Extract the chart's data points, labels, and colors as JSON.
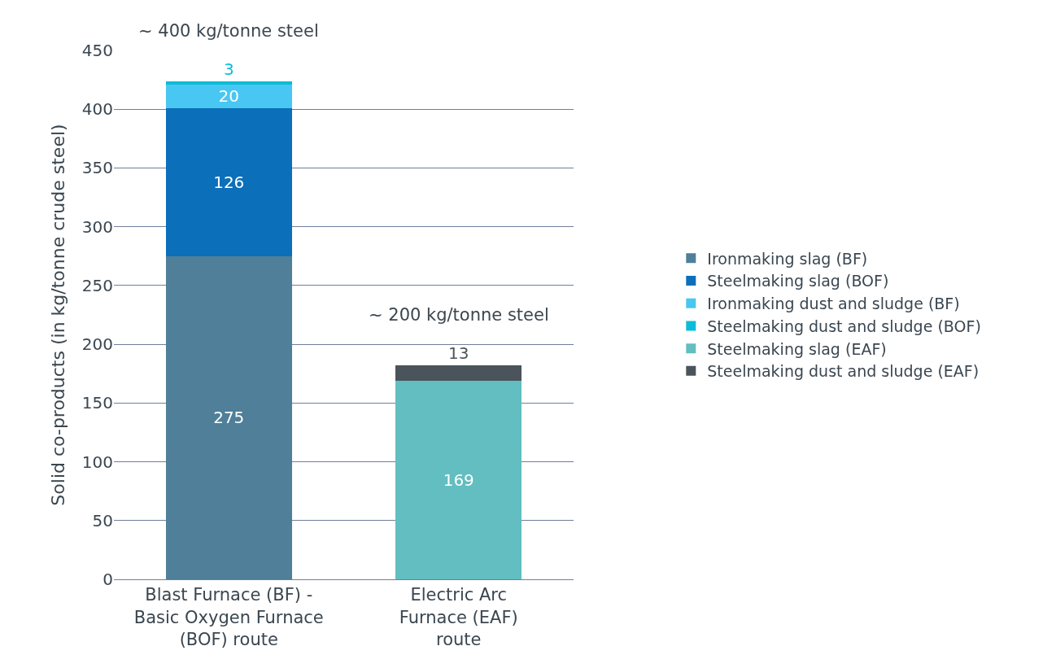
{
  "chart_data": {
    "type": "bar",
    "stacked": true,
    "ylabel": "Solid co-products (in kg/tonne crude steel)",
    "categories": [
      "Blast Furnace (BF) -\nBasic Oxygen Furnace\n(BOF) route",
      "Electric Arc\nFurnace (EAF)\nroute"
    ],
    "series": [
      {
        "name": "Ironmaking slag (BF)",
        "color": "#4f7f99",
        "values": [
          275,
          null
        ]
      },
      {
        "name": "Steelmaking slag (BOF)",
        "color": "#0b6fba",
        "values": [
          126,
          null
        ]
      },
      {
        "name": "Ironmaking dust and sludge (BF)",
        "color": "#48c7f2",
        "values": [
          20,
          null
        ]
      },
      {
        "name": "Steelmaking dust and sludge (BOF)",
        "color": "#0cbcd6",
        "values": [
          3,
          null
        ]
      },
      {
        "name": "Steelmaking slag (EAF)",
        "color": "#62bec0",
        "values": [
          null,
          169
        ]
      },
      {
        "name": "Steelmaking dust and sludge (EAF)",
        "color": "#4a545a",
        "values": [
          null,
          13
        ]
      }
    ],
    "ylim": [
      0,
      450
    ],
    "yticks": [
      0,
      50,
      100,
      150,
      200,
      250,
      300,
      350,
      400,
      450
    ],
    "grid": "y",
    "legend": "right",
    "data_labels": true,
    "annotations": [
      "~ 400 kg/tonne steel",
      "~ 200 kg/tonne steel"
    ]
  }
}
